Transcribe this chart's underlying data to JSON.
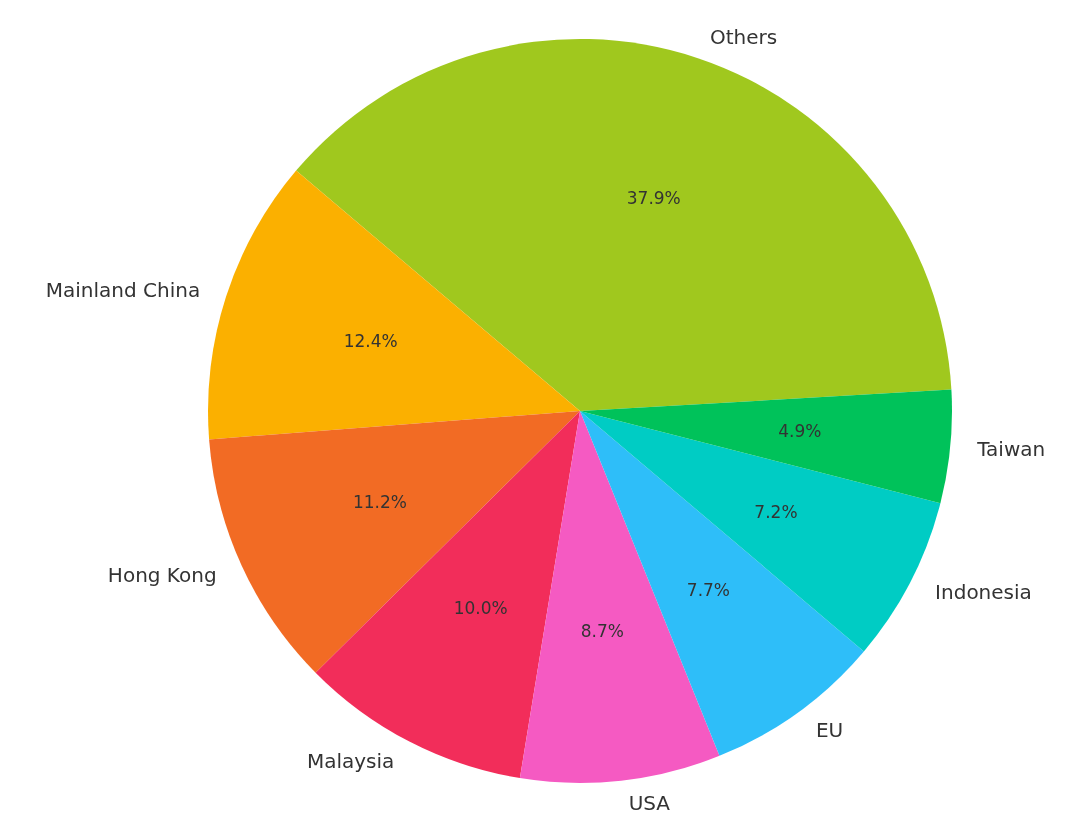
{
  "chart_data": {
    "type": "pie",
    "categories": [
      "Others",
      "Mainland China",
      "Hong Kong",
      "Malaysia",
      "USA",
      "EU",
      "Indonesia",
      "Taiwan"
    ],
    "values": [
      37.9,
      12.4,
      11.2,
      10.0,
      8.7,
      7.7,
      7.2,
      4.9
    ],
    "value_labels": [
      "37.9%",
      "12.4%",
      "11.2%",
      "10.0%",
      "8.7%",
      "7.7%",
      "7.2%",
      "4.9%"
    ],
    "colors": [
      "#a0c81e",
      "#fbb000",
      "#f26b24",
      "#f22d5a",
      "#f55ac2",
      "#2ebef9",
      "#00ccc4",
      "#00c25a"
    ]
  }
}
